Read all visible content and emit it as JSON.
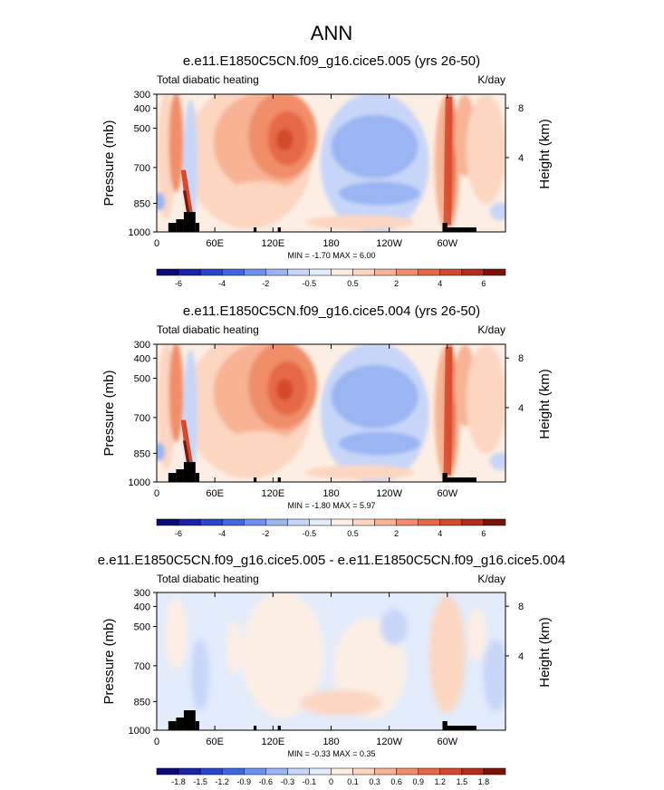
{
  "figure": {
    "title": "ANN"
  },
  "colors": {
    "neg7": "#0a0a78",
    "neg6": "#1a23a8",
    "neg5": "#2a46cf",
    "neg4": "#3f67e0",
    "neg3": "#6e8fec",
    "neg2": "#9bb4f2",
    "neg1": "#c7d6f8",
    "neg0": "#e3ecfb",
    "pos0": "#fdeee4",
    "pos1": "#fcd6c1",
    "pos2": "#f7b394",
    "pos3": "#f08e6a",
    "pos4": "#e66947",
    "pos5": "#d44a2c",
    "pos6": "#b22d1a",
    "pos7": "#7a1408",
    "topography": "#000000"
  },
  "chart_data": [
    {
      "type": "heatmap",
      "id": "panel1",
      "title": "e.e11.E1850C5CN.f09_g16.cice5.005 (yrs 26-50)",
      "left_label": "Total diabatic heating",
      "right_label": "K/day",
      "ylabel": "Pressure (mb)",
      "ylabel_right": "Height (km)",
      "y_ticks": [
        "300",
        "400",
        "500",
        "700",
        "850",
        "1000"
      ],
      "y_ticks_right": [
        "8",
        "4"
      ],
      "x_ticks": [
        "0",
        "60E",
        "120E",
        "180",
        "120W",
        "60W"
      ],
      "stats": "MIN = -1.70  MAX =  6.00",
      "colorbar_labels": [
        "-6",
        "-4",
        "-2",
        "-0.5",
        "0.5",
        "2",
        "4",
        "6"
      ],
      "xlim": [
        0,
        360
      ],
      "ylim_mb": [
        1000,
        300
      ],
      "min": -1.7,
      "max": 6.0
    },
    {
      "type": "heatmap",
      "id": "panel2",
      "title": "e.e11.E1850C5CN.f09_g16.cice5.004 (yrs 26-50)",
      "left_label": "Total diabatic heating",
      "right_label": "K/day",
      "ylabel": "Pressure (mb)",
      "ylabel_right": "Height (km)",
      "y_ticks": [
        "300",
        "400",
        "500",
        "700",
        "850",
        "1000"
      ],
      "y_ticks_right": [
        "8",
        "4"
      ],
      "x_ticks": [
        "0",
        "60E",
        "120E",
        "180",
        "120W",
        "60W"
      ],
      "stats": "MIN = -1.80  MAX =  5.97",
      "colorbar_labels": [
        "-6",
        "-4",
        "-2",
        "-0.5",
        "0.5",
        "2",
        "4",
        "6"
      ],
      "xlim": [
        0,
        360
      ],
      "ylim_mb": [
        1000,
        300
      ],
      "min": -1.8,
      "max": 5.97
    },
    {
      "type": "heatmap",
      "id": "panel3",
      "title": "e.e11.E1850C5CN.f09_g16.cice5.005 - e.e11.E1850C5CN.f09_g16.cice5.004",
      "left_label": "Total diabatic heating",
      "right_label": "K/day",
      "ylabel": "Pressure (mb)",
      "ylabel_right": "Height (km)",
      "y_ticks": [
        "300",
        "400",
        "500",
        "700",
        "850",
        "1000"
      ],
      "y_ticks_right": [
        "8",
        "4"
      ],
      "x_ticks": [
        "0",
        "60E",
        "120E",
        "180",
        "120W",
        "60W"
      ],
      "stats": "MIN = -0.33  MAX =  0.35",
      "colorbar_labels": [
        "-1.8",
        "-1.5",
        "-1.2",
        "-0.9",
        "-0.6",
        "-0.3",
        "-0.1",
        "0",
        "0.1",
        "0.3",
        "0.6",
        "0.9",
        "1.2",
        "1.5",
        "1.8"
      ],
      "xlim": [
        0,
        360
      ],
      "ylim_mb": [
        1000,
        300
      ],
      "min": -0.33,
      "max": 0.35
    }
  ]
}
